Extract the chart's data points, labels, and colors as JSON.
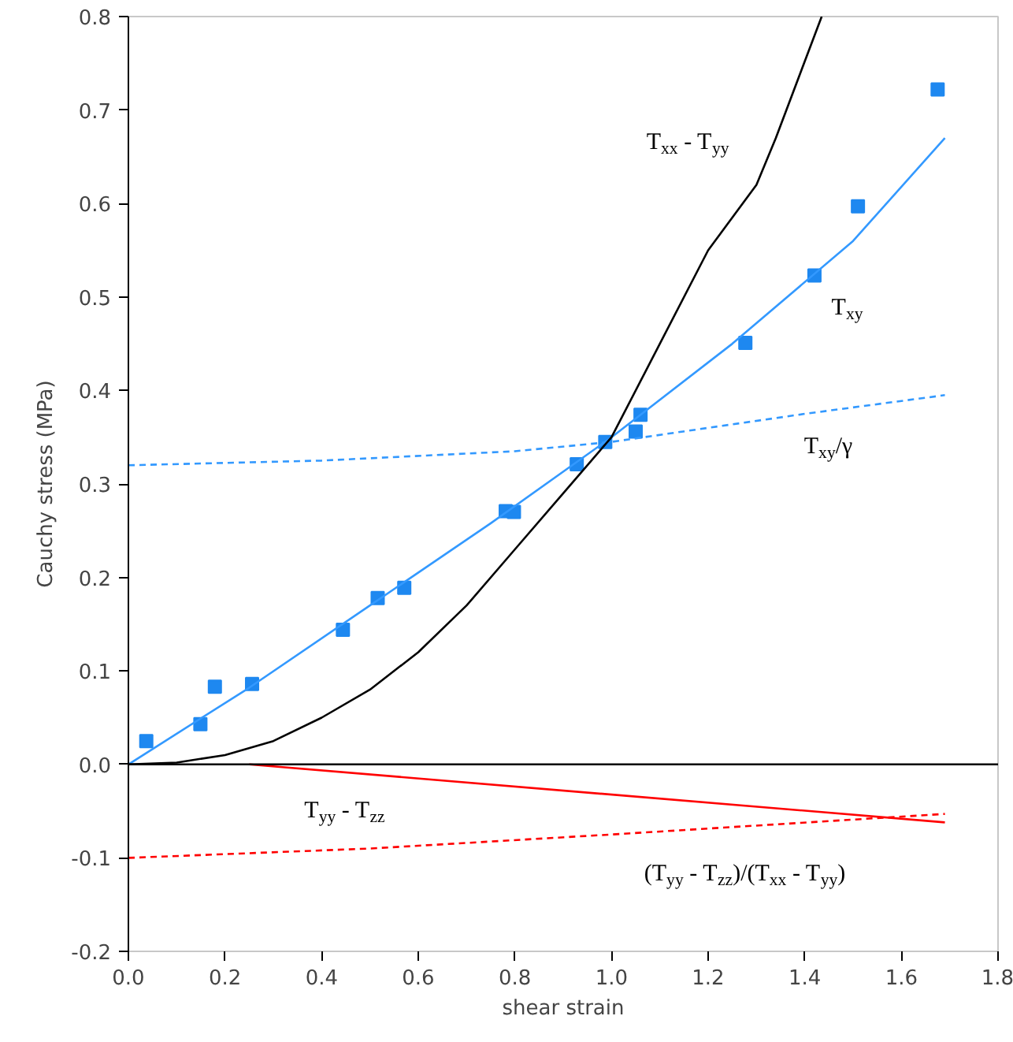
{
  "chart_data": {
    "type": "line",
    "xlabel": "shear strain",
    "ylabel": "Cauchy stress (MPa)",
    "xlim": [
      0,
      1.8
    ],
    "xticks": [
      {
        "value": 0,
        "label": "0.0"
      },
      {
        "value": 0.2,
        "label": "0.2"
      },
      {
        "value": 0.4,
        "label": "0.4"
      },
      {
        "value": 0.6,
        "label": "0.6"
      },
      {
        "value": 0.8,
        "label": "0.8"
      },
      {
        "value": 1.0,
        "label": "1.0"
      },
      {
        "value": 1.2,
        "label": "1.2"
      },
      {
        "value": 1.4,
        "label": "1.4"
      },
      {
        "value": 1.6,
        "label": "1.6"
      },
      {
        "value": 1.8,
        "label": "1.8"
      }
    ],
    "ylim": [
      -0.2,
      0.8
    ],
    "yticks": [
      {
        "value": -0.2,
        "label": "-0.2"
      },
      {
        "value": -0.1,
        "label": "-0.1"
      },
      {
        "value": 0,
        "label": "0.0"
      },
      {
        "value": 0.1,
        "label": "0.1"
      },
      {
        "value": 0.2,
        "label": "0.2"
      },
      {
        "value": 0.3,
        "label": "0.3"
      },
      {
        "value": 0.4,
        "label": "0.4"
      },
      {
        "value": 0.5,
        "label": "0.5"
      },
      {
        "value": 0.6,
        "label": "0.6"
      },
      {
        "value": 0.7,
        "label": "0.7"
      },
      {
        "value": 0.8,
        "label": "0.8"
      }
    ],
    "grid": false,
    "legend": false,
    "series": [
      {
        "type": "scatter",
        "marker": "square",
        "color": "#1e88f0",
        "x": [
          0.037,
          0.149,
          0.179,
          0.256,
          0.444,
          0.516,
          0.571,
          0.781,
          0.798,
          0.928,
          0.987,
          1.05,
          1.06,
          1.277,
          1.42,
          1.51,
          1.675
        ],
        "values": [
          0.025,
          0.043,
          0.083,
          0.086,
          0.144,
          0.178,
          0.189,
          0.271,
          0.27,
          0.321,
          0.345,
          0.356,
          0.374,
          0.451,
          0.523,
          0.597,
          0.722
        ]
      },
      {
        "name": "T$_{xy}$",
        "line_style": "solid",
        "color": "#3399ff",
        "x": [
          0,
          0.25,
          0.5,
          0.75,
          1.0,
          1.25,
          1.5,
          1.69
        ],
        "values": [
          0,
          0.082,
          0.17,
          0.258,
          0.35,
          0.45,
          0.56,
          0.67
        ]
      },
      {
        "name": "T$_{xy}$/γ",
        "line_style": "dashed",
        "color": "#3399ff",
        "x": [
          0,
          0.4,
          0.8,
          1.0,
          1.2,
          1.4,
          1.69
        ],
        "values": [
          0.32,
          0.325,
          0.335,
          0.345,
          0.36,
          0.375,
          0.395
        ]
      },
      {
        "name": "T$_{xx}$ - T$_{yy}$",
        "line_style": "solid",
        "color": "#000000",
        "x": [
          0,
          0.1,
          0.2,
          0.3,
          0.4,
          0.5,
          0.6,
          0.7,
          0.8,
          0.9,
          1.0,
          1.1,
          1.2,
          1.3,
          1.34,
          1.435
        ],
        "values": [
          0,
          0.002,
          0.01,
          0.025,
          0.05,
          0.08,
          0.12,
          0.17,
          0.23,
          0.29,
          0.35,
          0.45,
          0.55,
          0.62,
          0.67,
          0.8
        ]
      },
      {
        "name": "T$_{yy}$ - T$_{zz}$",
        "line_style": "solid",
        "color": "#ff0000",
        "x": [
          0.25,
          1.69
        ],
        "values": [
          0,
          -0.062
        ]
      },
      {
        "name": "(T$_{yy}$ - T$_{zz}$)/(T$_{xx}$ - T$_{yy}$)",
        "line_style": "dashed",
        "color": "#ff0000",
        "x": [
          0,
          0.5,
          1.0,
          1.69
        ],
        "values": [
          -0.1,
          -0.09,
          -0.075,
          -0.053
        ]
      }
    ],
    "ref_lines": [
      {
        "axis": "y",
        "value": 0,
        "color": "#000000"
      }
    ]
  }
}
